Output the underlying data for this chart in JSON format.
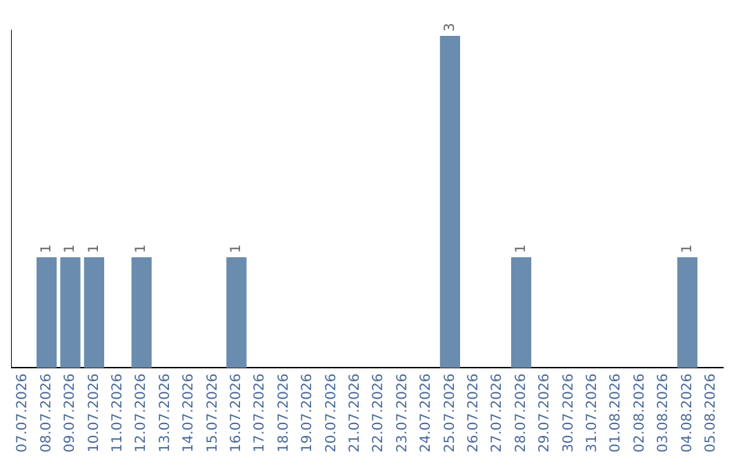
{
  "chart_data": {
    "type": "bar",
    "categories": [
      "07.07.2026",
      "08.07.2026",
      "09.07.2026",
      "10.07.2026",
      "11.07.2026",
      "12.07.2026",
      "13.07.2026",
      "14.07.2026",
      "15.07.2026",
      "16.07.2026",
      "17.07.2026",
      "18.07.2026",
      "19.07.2026",
      "20.07.2026",
      "21.07.2026",
      "22.07.2026",
      "23.07.2026",
      "24.07.2026",
      "25.07.2026",
      "26.07.2026",
      "27.07.2026",
      "28.07.2026",
      "29.07.2026",
      "30.07.2026",
      "31.07.2026",
      "01.08.2026",
      "02.08.2026",
      "03.08.2026",
      "04.08.2026",
      "05.08.2026"
    ],
    "values": [
      0,
      1,
      1,
      1,
      0,
      1,
      0,
      0,
      0,
      1,
      0,
      0,
      0,
      0,
      0,
      0,
      0,
      0,
      3,
      0,
      0,
      1,
      0,
      0,
      0,
      0,
      0,
      0,
      1,
      0
    ],
    "value_labels": [
      null,
      "1",
      "1",
      "1",
      null,
      "1",
      null,
      null,
      null,
      "1",
      null,
      null,
      null,
      null,
      null,
      null,
      null,
      null,
      "3",
      null,
      null,
      "1",
      null,
      null,
      null,
      null,
      null,
      null,
      "1",
      null
    ],
    "color": "#6a8caf",
    "ylim": [
      0,
      3.05
    ],
    "tick_labels": "x",
    "grid": false,
    "legend": false
  }
}
